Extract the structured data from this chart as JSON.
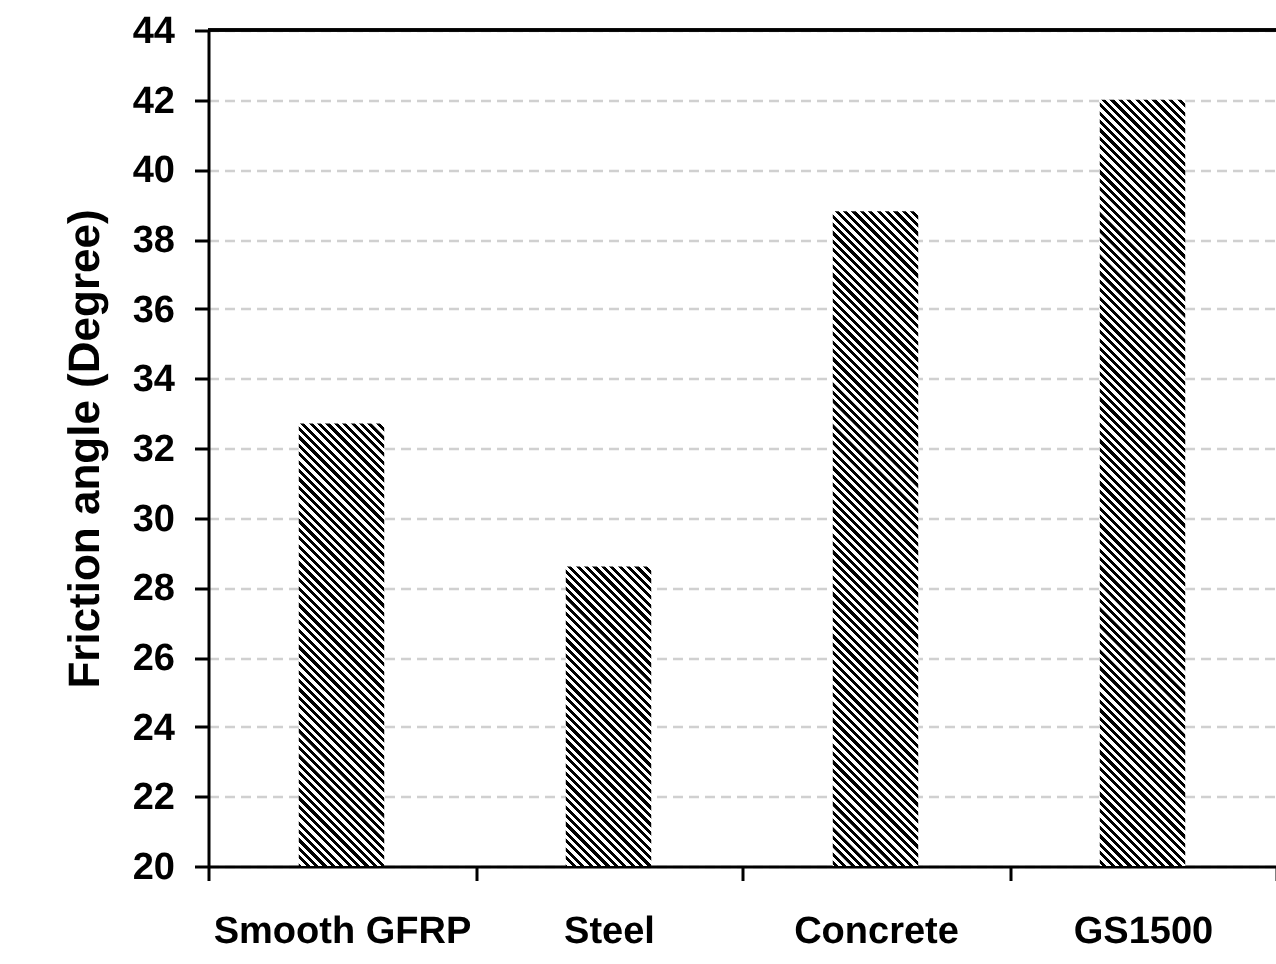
{
  "chart_data": {
    "type": "bar",
    "ylabel": "Friction angle (Degree)",
    "categories": [
      "Smooth GFRP",
      "Steel",
      "Concrete",
      "GS1500"
    ],
    "values": [
      32.7,
      28.6,
      38.8,
      42.0
    ],
    "color": "#000000",
    "ylim": [
      20,
      44
    ],
    "yticks": [
      20,
      22,
      24,
      26,
      28,
      30,
      32,
      34,
      36,
      38,
      40,
      42,
      44
    ],
    "grid": "y"
  }
}
